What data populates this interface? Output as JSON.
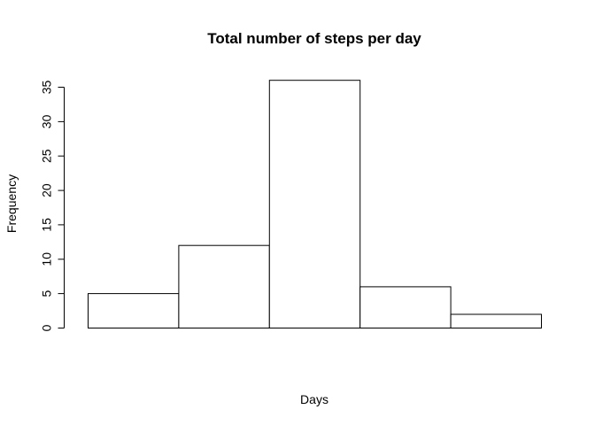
{
  "chart_data": {
    "type": "bar",
    "title": "Total number of steps per day",
    "xlabel": "Days",
    "ylabel": "Frequency",
    "values": [
      5,
      12,
      36,
      6,
      2
    ],
    "ylim": [
      0,
      35
    ],
    "yticks": [
      0,
      5,
      10,
      15,
      20,
      25,
      30,
      35
    ],
    "ytick_labels": [
      "0",
      "5",
      "10",
      "15",
      "20",
      "25",
      "30",
      "35"
    ],
    "grid": false,
    "legend": "none",
    "colors": {
      "bar_fill": "#ffffff",
      "bar_stroke": "#000000",
      "axis": "#000000",
      "text": "#000000"
    }
  }
}
